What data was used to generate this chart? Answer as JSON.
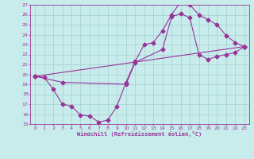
{
  "xlabel": "Windchill (Refroidissement éolien,°C)",
  "line_color": "#993399",
  "bg_color": "#c8ecec",
  "grid_color": "#a0d0d0",
  "xlim": [
    -0.5,
    23.5
  ],
  "ylim": [
    15,
    27
  ],
  "xticks": [
    0,
    1,
    2,
    3,
    4,
    5,
    6,
    7,
    8,
    9,
    10,
    11,
    12,
    13,
    14,
    15,
    16,
    17,
    18,
    19,
    20,
    21,
    22,
    23
  ],
  "yticks": [
    15,
    16,
    17,
    18,
    19,
    20,
    21,
    22,
    23,
    24,
    25,
    26,
    27
  ],
  "line1_x": [
    0,
    1,
    2,
    3,
    4,
    5,
    6,
    7,
    8,
    9,
    10,
    11,
    12,
    13,
    14,
    15,
    16,
    17,
    18,
    19,
    20,
    21,
    22,
    23
  ],
  "line1_y": [
    19.8,
    19.7,
    18.5,
    17.0,
    16.8,
    15.9,
    15.8,
    15.2,
    15.4,
    16.8,
    19.2,
    21.3,
    23.0,
    23.2,
    24.4,
    26.0,
    27.3,
    27.0,
    26.0,
    25.5,
    25.0,
    23.9,
    23.2,
    22.8
  ],
  "line2_x": [
    0,
    3,
    10,
    11,
    14,
    15,
    16,
    17,
    18,
    19,
    20,
    21,
    22,
    23
  ],
  "line2_y": [
    19.8,
    19.2,
    19.0,
    21.2,
    22.5,
    25.8,
    26.1,
    25.7,
    22.0,
    21.5,
    21.8,
    22.0,
    22.2,
    22.8
  ],
  "line3_x": [
    0,
    23
  ],
  "line3_y": [
    19.8,
    22.8
  ],
  "marker": "D",
  "markersize": 2.5,
  "linewidth": 0.8
}
